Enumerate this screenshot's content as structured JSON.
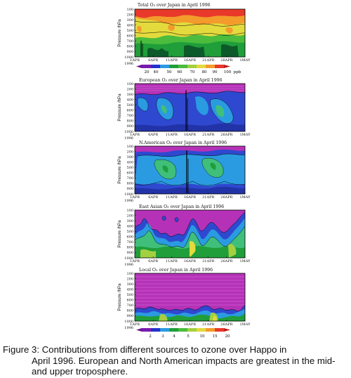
{
  "panels": [
    {
      "title": "Total O₃ over Japan in April 1996"
    },
    {
      "title": "European O₃ over Japan in April 1996"
    },
    {
      "title": "N.American O₃ over Japan in April 1996"
    },
    {
      "title": "East Asian O₃ over Japan in April 1996"
    },
    {
      "title": "Local O₃ over Japan in April 1996"
    }
  ],
  "axes": {
    "ylabel": "Pressure /hPa",
    "yticks": [
      "100",
      "200",
      "300",
      "400",
      "500",
      "600",
      "700",
      "800",
      "900",
      "1000"
    ],
    "xticks": [
      "1APR",
      "6APR",
      "11APR",
      "16APR",
      "21APR",
      "26APR",
      "1MAY"
    ],
    "year": "1996"
  },
  "colorbar_total": {
    "ticks": [
      "20",
      "40",
      "50",
      "60",
      "70",
      "80",
      "90",
      "100"
    ],
    "unit": "ppb"
  },
  "colorbar_local": {
    "ticks": [
      "2",
      "3",
      "4",
      "5",
      "10",
      "15",
      "20"
    ],
    "unit": "ppb"
  },
  "caption": {
    "line1": "Figure 3: Contributions from different sources to ozone over Happo in",
    "rest": "April 1996. European and North American impacts are greatest in the mid- and upper troposphere."
  }
}
